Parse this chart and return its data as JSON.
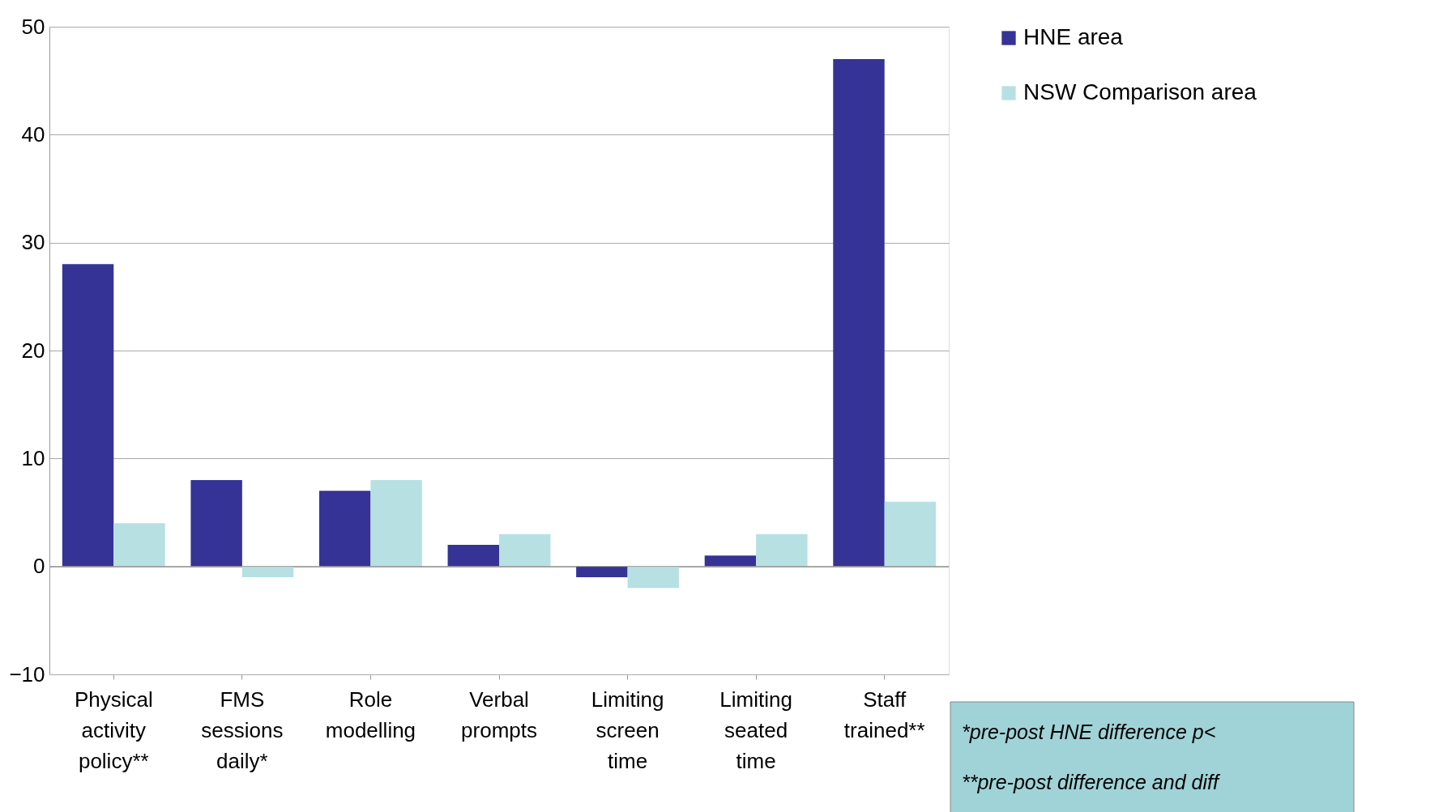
{
  "chart_data": {
    "type": "bar",
    "categories": [
      "Physical activity policy**",
      "FMS sessions daily*",
      "Role modelling",
      "Verbal prompts",
      "Limiting screen time",
      "Limiting seated time",
      "Staff trained**"
    ],
    "series": [
      {
        "name": "HNE area",
        "color": "#353396",
        "values": [
          28,
          8,
          7,
          2,
          -1,
          1,
          47
        ]
      },
      {
        "name": "NSW Comparison area",
        "color": "#b7e0e3",
        "values": [
          4,
          -1,
          8,
          3,
          -2,
          3,
          6
        ]
      }
    ],
    "ylim": [
      -10,
      50
    ],
    "yticks": [
      -10,
      0,
      10,
      20,
      30,
      40,
      50
    ],
    "grid": "y",
    "legend": "right",
    "annotations": [
      "*pre-post HNE difference p<",
      "**pre-post difference and diff"
    ]
  }
}
